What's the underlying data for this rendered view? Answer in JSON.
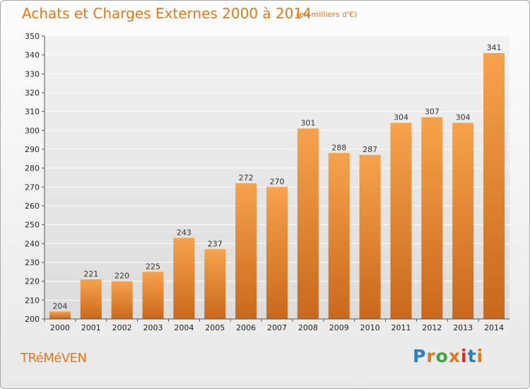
{
  "header": {
    "title": "Achats et Charges Externes 2000 à 2014",
    "subtitle": "(en milliers d'€)"
  },
  "footer": {
    "town": "TRéMéVEN",
    "logo_text": "Proxiti"
  },
  "colors": {
    "accent": "#e07a1c",
    "bar_light": "#f6a34c",
    "bar_dark": "#c9681c",
    "logo": [
      "#2c7fc1",
      "#e07a1c",
      "#3aa53a",
      "#e07a1c",
      "#d6282c",
      "#2c7fc1",
      "#e07a1c"
    ]
  },
  "chart_data": {
    "type": "bar",
    "title": "Achats et Charges Externes 2000 à 2014",
    "subtitle": "(en milliers d'€)",
    "categories": [
      "2000",
      "2001",
      "2002",
      "2003",
      "2004",
      "2005",
      "2006",
      "2007",
      "2008",
      "2009",
      "2010",
      "2011",
      "2012",
      "2013",
      "2014"
    ],
    "values": [
      204,
      221,
      220,
      225,
      243,
      237,
      272,
      270,
      301,
      288,
      287,
      304,
      307,
      304,
      341
    ],
    "ylim": [
      200,
      350
    ],
    "yticks": [
      "200",
      "210",
      "220",
      "230",
      "240",
      "250",
      "260",
      "270",
      "280",
      "290",
      "300",
      "310",
      "320",
      "330",
      "340",
      "350"
    ],
    "grid": true,
    "legend": "none"
  }
}
